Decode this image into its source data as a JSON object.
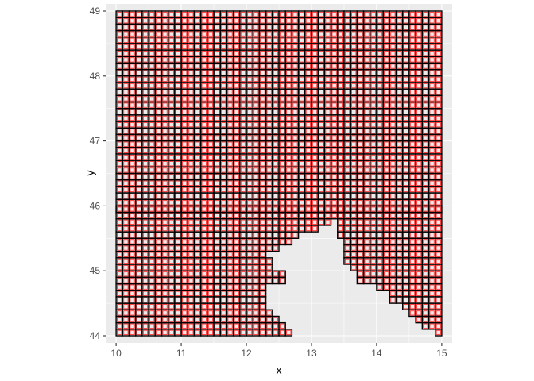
{
  "chart_data": {
    "type": "heatmap",
    "title": "",
    "xlabel": "x",
    "ylabel": "y",
    "xlim": [
      9.84,
      15.16
    ],
    "ylim": [
      43.89,
      49.11
    ],
    "xticks": [
      "10",
      "11",
      "12",
      "13",
      "14",
      "15"
    ],
    "yticks": [
      "44",
      "45",
      "46",
      "47",
      "48",
      "49"
    ],
    "grid": true,
    "legend": "none",
    "cell_width": 0.1,
    "cell_height": 0.1,
    "row_y_bottoms": [
      44.0,
      44.1,
      44.2,
      44.3,
      44.4,
      44.5,
      44.6,
      44.7,
      44.8,
      44.9,
      45.0,
      45.1,
      45.2,
      45.3,
      45.4,
      45.5,
      45.6,
      45.7,
      45.8,
      45.9
    ],
    "row_x_spans": [
      [
        [
          10.0,
          12.7
        ],
        [
          14.9,
          15.0
        ]
      ],
      [
        [
          10.0,
          12.6
        ],
        [
          14.7,
          15.0
        ]
      ],
      [
        [
          10.0,
          12.5
        ],
        [
          14.6,
          15.0
        ]
      ],
      [
        [
          10.0,
          12.4
        ],
        [
          14.5,
          15.0
        ]
      ],
      [
        [
          10.0,
          12.3
        ],
        [
          14.4,
          15.0
        ]
      ],
      [
        [
          10.0,
          12.3
        ],
        [
          14.2,
          15.0
        ]
      ],
      [
        [
          10.0,
          12.3
        ],
        [
          14.2,
          15.0
        ]
      ],
      [
        [
          10.0,
          12.3
        ],
        [
          14.0,
          15.0
        ]
      ],
      [
        [
          10.0,
          12.6
        ],
        [
          13.7,
          15.0
        ]
      ],
      [
        [
          10.0,
          12.6
        ],
        [
          13.7,
          15.0
        ]
      ],
      [
        [
          10.0,
          12.4
        ],
        [
          13.6,
          15.0
        ]
      ],
      [
        [
          10.0,
          12.4
        ],
        [
          13.5,
          15.0
        ]
      ],
      [
        [
          10.0,
          12.3
        ],
        [
          13.5,
          15.0
        ]
      ],
      [
        [
          10.0,
          12.5
        ],
        [
          13.5,
          15.0
        ]
      ],
      [
        [
          10.0,
          12.7
        ],
        [
          13.5,
          15.0
        ]
      ],
      [
        [
          10.0,
          12.8
        ],
        [
          13.4,
          15.0
        ]
      ],
      [
        [
          10.0,
          13.1
        ],
        [
          13.4,
          15.0
        ]
      ],
      [
        [
          10.0,
          13.3
        ],
        [
          13.4,
          15.0
        ]
      ],
      [
        [
          10.0,
          15.0
        ]
      ],
      [
        [
          10.0,
          15.0
        ]
      ]
    ],
    "top_row_y_bottom": 45.9,
    "top_row_y_top": 49.0,
    "fill_color": "#a31515",
    "cell_edge_color": "#ff3030",
    "outline_color": "#000000",
    "panel_color": "#ebebeb",
    "grid_color": "#ffffff"
  }
}
